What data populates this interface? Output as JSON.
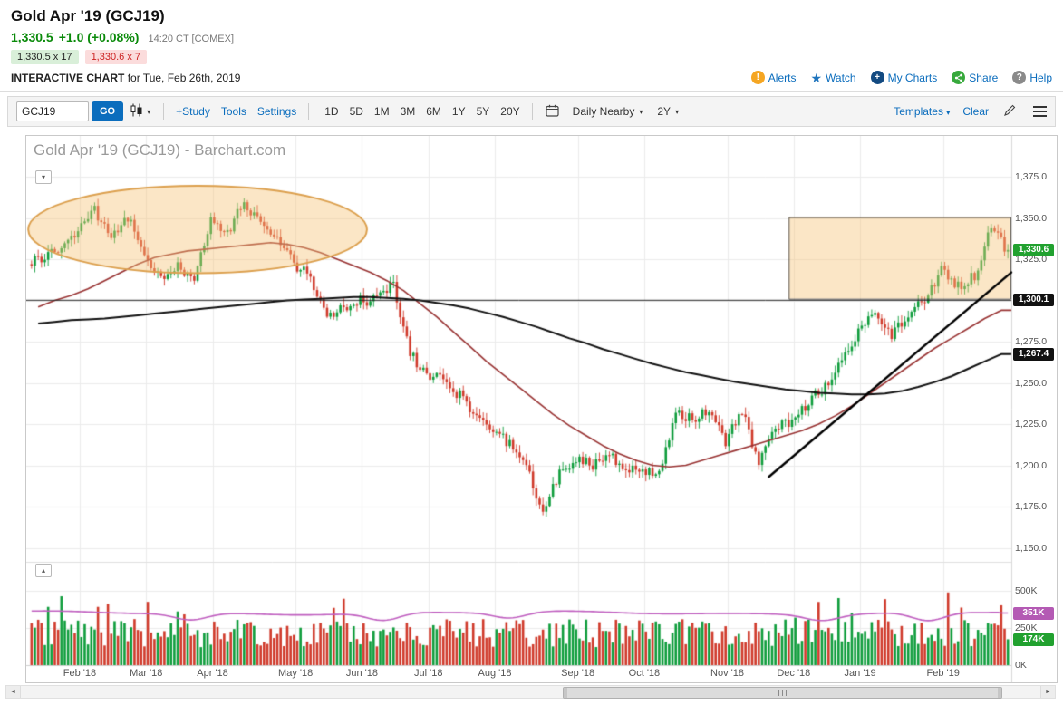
{
  "header": {
    "title": "Gold Apr '19 (GCJ19)",
    "last_price": "1,330.5",
    "change": "+1.0 (+0.08%)",
    "quote_time": "14:20 CT [COMEX]",
    "bid": "1,330.5 x 17",
    "ask": "1,330.6 x 7",
    "chart_label": "INTERACTIVE CHART",
    "chart_date": "for Tue, Feb 26th, 2019",
    "links": {
      "alerts": "Alerts",
      "watch": "Watch",
      "my_charts": "My Charts",
      "share": "Share",
      "help": "Help"
    }
  },
  "toolbar": {
    "symbol": "GCJ19",
    "go": "GO",
    "study": "+Study",
    "tools": "Tools",
    "settings": "Settings",
    "ranges": [
      "1D",
      "5D",
      "1M",
      "3M",
      "6M",
      "1Y",
      "5Y",
      "20Y"
    ],
    "frequency": "Daily Nearby",
    "zoom": "2Y",
    "templates": "Templates",
    "clear": "Clear"
  },
  "chart_data": {
    "type": "candlestick",
    "title": "Gold Apr '19 (GCJ19) - Barchart.com",
    "y_axis": {
      "min": 1150,
      "max": 1375,
      "ticks": [
        {
          "value": 1375,
          "label": "1,375.0"
        },
        {
          "value": 1350,
          "label": "1,350.0"
        },
        {
          "value": 1325,
          "label": "1,325.0"
        },
        {
          "value": 1300,
          "label": "1,300.0",
          "hidden": true
        },
        {
          "value": 1275,
          "label": "1,275.0"
        },
        {
          "value": 1250,
          "label": "1,250.0"
        },
        {
          "value": 1225,
          "label": "1,225.0"
        },
        {
          "value": 1200,
          "label": "1,200.0"
        },
        {
          "value": 1175,
          "label": "1,175.0"
        },
        {
          "value": 1150,
          "label": "1,150.0"
        }
      ]
    },
    "volume_axis": {
      "ticks": [
        {
          "value": 500,
          "label": "500K"
        },
        {
          "value": 250,
          "label": "250K"
        },
        {
          "value": 0,
          "label": "0K"
        }
      ]
    },
    "badges": {
      "last": "1,330.6",
      "hline": "1,300.1",
      "ma_black": "1,267.4",
      "vol_avg": "351K",
      "vol_last": "174K"
    },
    "series": {
      "start_close": 1322,
      "last_close": 1330.6,
      "lead_in_weekly_closes": [
        1326,
        1334,
        1342
      ],
      "months": [
        {
          "label": "Feb '18",
          "weekly_closes": [
            1355,
            1338,
            1350,
            1330
          ]
        },
        {
          "label": "Mar '18",
          "weekly_closes": [
            1312,
            1322,
            1310,
            1350
          ]
        },
        {
          "label": "Apr '18",
          "weekly_closes": [
            1340,
            1360,
            1345,
            1338,
            1322
          ]
        },
        {
          "label": "May '18",
          "weekly_closes": [
            1315,
            1288,
            1295,
            1300
          ]
        },
        {
          "label": "Jun '18",
          "weekly_closes": [
            1300,
            1310,
            1268,
            1254
          ]
        },
        {
          "label": "Jul '18",
          "weekly_closes": [
            1252,
            1242,
            1228,
            1222
          ]
        },
        {
          "label": "Aug '18",
          "weekly_closes": [
            1212,
            1198,
            1172,
            1196,
            1203
          ]
        },
        {
          "label": "Sep '18",
          "weekly_closes": [
            1200,
            1206,
            1198,
            1194
          ]
        },
        {
          "label": "Oct '18",
          "weekly_closes": [
            1198,
            1230,
            1228,
            1233,
            1215
          ]
        },
        {
          "label": "Nov '18",
          "weekly_closes": [
            1234,
            1200,
            1222,
            1228
          ]
        },
        {
          "label": "Dec '18",
          "weekly_closes": [
            1238,
            1248,
            1262,
            1282
          ]
        },
        {
          "label": "Jan '19",
          "weekly_closes": [
            1290,
            1280,
            1288,
            1302,
            1318
          ]
        },
        {
          "label": "Feb '19",
          "weekly_closes": [
            1308,
            1315,
            1345,
            1330.6
          ]
        }
      ],
      "ma_red_weekly": [
        1296,
        1300,
        1303,
        1307,
        1312,
        1317,
        1322,
        1326,
        1328,
        1330,
        1331,
        1332,
        1333,
        1334,
        1335,
        1334,
        1332,
        1329,
        1325,
        1321,
        1317,
        1312,
        1306,
        1298,
        1290,
        1281,
        1272,
        1263,
        1255,
        1247,
        1239,
        1231,
        1224,
        1218,
        1212,
        1207,
        1203,
        1200,
        1199,
        1200,
        1203,
        1206,
        1209,
        1212,
        1215,
        1218,
        1221,
        1225,
        1230,
        1236,
        1243,
        1250,
        1257,
        1264,
        1271,
        1277,
        1283,
        1289,
        1294
      ],
      "ma_black_weekly": [
        1286,
        1287,
        1288,
        1288.5,
        1289,
        1290,
        1291,
        1292,
        1293,
        1294,
        1295,
        1296,
        1297,
        1298,
        1299,
        1300,
        1300.5,
        1301,
        1301.5,
        1302,
        1302,
        1301.5,
        1301,
        1300,
        1298.5,
        1297,
        1295,
        1292.5,
        1290,
        1287,
        1284,
        1280.5,
        1277,
        1274,
        1270.5,
        1267.5,
        1264.5,
        1261.5,
        1259,
        1256.5,
        1254.5,
        1252.5,
        1250.5,
        1249,
        1247.5,
        1246,
        1245,
        1244,
        1243.5,
        1243,
        1243,
        1243.5,
        1245,
        1247.5,
        1250.5,
        1254,
        1258.5,
        1263,
        1267.4
      ]
    },
    "annotations": {
      "ellipse": {
        "center_day": 50,
        "center_price": 1343,
        "radius_days": 51,
        "radius_points": 26.5
      },
      "resistance_zone": {
        "from_day": 228,
        "price_low": 1301,
        "price_high": 1350.5
      },
      "trendline": {
        "from_day": 222,
        "from_price": 1193,
        "to_price": 1317
      },
      "horizontal_line": {
        "price": 1300.1
      }
    },
    "colors": {
      "up": "#0f9d3c",
      "down": "#d03a2b",
      "ma_fast": "#993333",
      "ma_slow": "#111111",
      "volume_line": "#c05fc0",
      "grid": "#ebebeb",
      "annotation_fill": "rgba(246,196,120,0.42)",
      "annotation_stroke": "#dca04e",
      "zone_stroke": "rgba(60,60,60,0.85)"
    }
  }
}
